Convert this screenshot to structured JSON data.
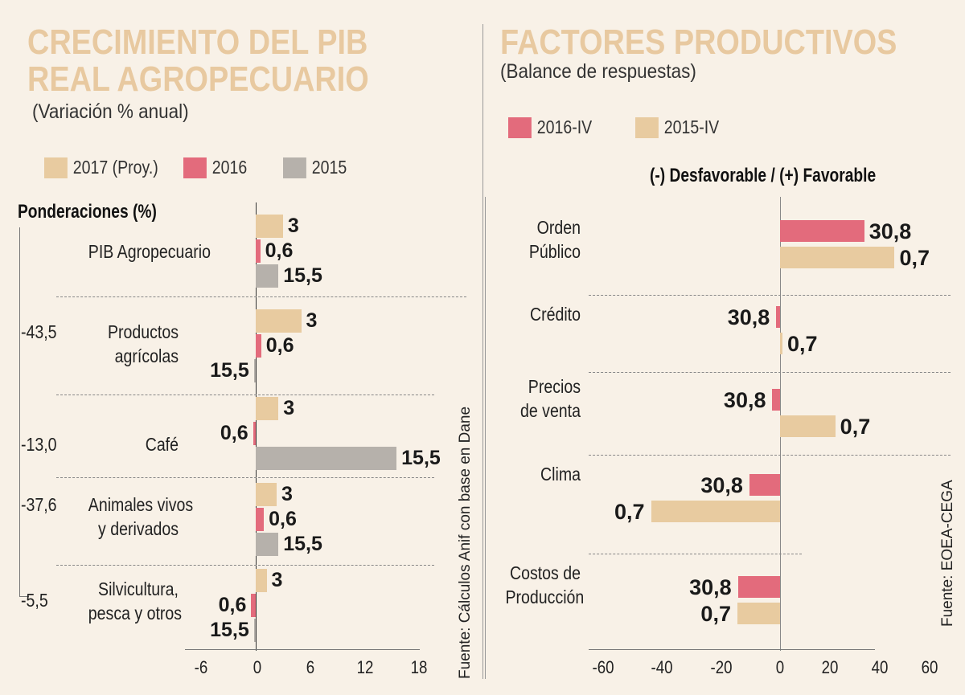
{
  "colors": {
    "c2017": "#e8cba0",
    "c2016": "#e36b7c",
    "c2015": "#b6b1ab",
    "title": "#e8c9a0"
  },
  "chart_data": [
    {
      "type": "bar",
      "orientation": "horizontal",
      "title": "CRECIMIENTO DEL PIB REAL AGROPECUARIO",
      "subtitle": "(Variación % anual)",
      "weights_label": "Ponderaciones (%)",
      "categories": [
        "PIB Agropecuario",
        "Productos agrícolas",
        "Café",
        "Animales vivos y derivados",
        "Silvicultura, pesca y otros"
      ],
      "weights": [
        "",
        "43,5",
        "13,0",
        "37,6",
        "5,5"
      ],
      "series": [
        {
          "name": "2017 (Proy.)",
          "values": [
            3,
            5,
            2.5,
            2.3,
            1.2
          ],
          "labels": [
            "3",
            "5",
            "2,5",
            "2,3",
            "1,2"
          ]
        },
        {
          "name": "2016",
          "values": [
            0.5,
            0.6,
            -0.3,
            0.9,
            -0.5
          ],
          "labels": [
            "0,5",
            "0,6",
            "-0,3",
            "0,9",
            "-0,5"
          ]
        },
        {
          "name": "2015",
          "values": [
            2.5,
            -0.2,
            15.5,
            2.5,
            -0.2
          ],
          "labels": [
            "2,5",
            "-0,2",
            "15,5",
            "2,5",
            "-0,2"
          ]
        }
      ],
      "xlim": [
        -6,
        18
      ],
      "xticks": [
        "-6",
        "0",
        "6",
        "12",
        "18"
      ],
      "source": "Fuente: Cálculos Anif con base en Dane"
    },
    {
      "type": "bar",
      "orientation": "horizontal",
      "title": "FACTORES PRODUCTIVOS",
      "subtitle": "(Balance de respuestas)",
      "axis_note": "(-) Desfavorable / (+) Favorable",
      "categories": [
        "Orden Público",
        "Crédito",
        "Precios de venta",
        "Clima",
        "Costos de Producción"
      ],
      "series": [
        {
          "name": "2016-IV",
          "values": [
            30.8,
            -1.4,
            -2.8,
            -11.2,
            -15.4
          ],
          "labels": [
            "30,8",
            "-1,4",
            "-2,8",
            "-11,2",
            "-15,4"
          ]
        },
        {
          "name": "2015-IV",
          "values": [
            41.9,
            0.7,
            20.2,
            -47.2,
            -15.6
          ],
          "labels": [
            "41,9",
            "0,7",
            "20,2",
            "-47,2",
            "-15,6"
          ]
        }
      ],
      "xlim": [
        -60,
        60
      ],
      "xticks": [
        "-60",
        "-40",
        "-20",
        "0",
        "20",
        "40",
        "60"
      ],
      "source": "Fuente: EOEA-CEGA"
    }
  ]
}
